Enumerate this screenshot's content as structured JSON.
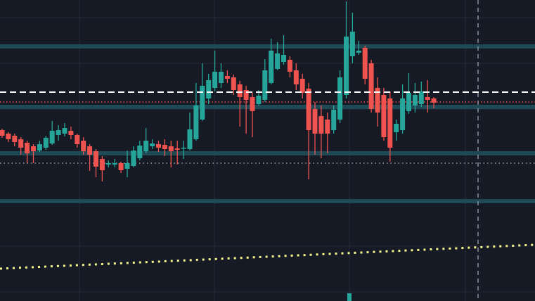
{
  "chart_data": {
    "type": "candlestick",
    "ylim": [
      0,
      428
    ],
    "yticks": [
      403,
      338,
      273,
      208,
      143,
      78,
      13
    ],
    "grid": true,
    "up_color": "#26a69a",
    "down_color": "#ef5350",
    "open": [
      243,
      238,
      235,
      230,
      225,
      220,
      214,
      218,
      224,
      236,
      238,
      242,
      236,
      228,
      220,
      213,
      202,
      194,
      194,
      196,
      188,
      192,
      203,
      213,
      220,
      223,
      222,
      220,
      217,
      217,
      216,
      230,
      258,
      288,
      303,
      310,
      320,
      318,
      308,
      300,
      290,
      280,
      286,
      310,
      330,
      340,
      343,
      328,
      316,
      302,
      273,
      263,
      258,
      243,
      258,
      293,
      348,
      353,
      360,
      338,
      303,
      293,
      288,
      240,
      243,
      270,
      278,
      280,
      290,
      288
    ],
    "high": [
      245,
      240,
      238,
      233,
      228,
      223,
      228,
      235,
      256,
      250,
      253,
      248,
      238,
      233,
      223,
      216,
      206,
      200,
      202,
      198,
      214,
      220,
      228,
      246,
      230,
      228,
      230,
      228,
      228,
      228,
      268,
      310,
      338,
      323,
      356,
      338,
      328,
      322,
      313,
      306,
      296,
      300,
      344,
      373,
      368,
      378,
      348,
      338,
      323,
      310,
      283,
      278,
      268,
      278,
      328,
      426,
      410,
      370,
      363,
      343,
      318,
      303,
      298,
      258,
      308,
      324,
      310,
      312,
      314,
      290
    ],
    "low": [
      232,
      226,
      220,
      208,
      196,
      196,
      212,
      215,
      222,
      228,
      234,
      230,
      218,
      208,
      185,
      176,
      170,
      190,
      190,
      182,
      176,
      190,
      200,
      210,
      216,
      212,
      206,
      190,
      194,
      202,
      214,
      228,
      256,
      280,
      298,
      303,
      310,
      293,
      248,
      238,
      233,
      278,
      283,
      308,
      328,
      336,
      318,
      300,
      288,
      173,
      208,
      203,
      210,
      238,
      253,
      288,
      338,
      350,
      308,
      268,
      248,
      228,
      198,
      228,
      238,
      266,
      268,
      276,
      268,
      274
    ],
    "close": [
      235,
      230,
      226,
      218,
      210,
      213,
      223,
      232,
      242,
      243,
      246,
      236,
      223,
      213,
      208,
      191,
      186,
      196,
      196,
      186,
      196,
      214,
      221,
      228,
      224,
      218,
      216,
      213,
      215,
      218,
      244,
      278,
      306,
      314,
      326,
      326,
      316,
      300,
      290,
      286,
      270,
      292,
      328,
      356,
      352,
      350,
      326,
      308,
      296,
      243,
      238,
      238,
      238,
      272,
      318,
      376,
      383,
      356,
      316,
      273,
      268,
      233,
      218,
      252,
      288,
      296,
      293,
      298,
      286,
      282
    ],
    "zone_levels": [
      362,
      276,
      210,
      142
    ],
    "zone_color": "#1f4a55",
    "last_price": 297,
    "last_price_color": "#ffffff",
    "previous_close": 283,
    "previous_close_color": "#ef5350",
    "support_level": 196,
    "support_color": "#9aa0ab",
    "trendline": [
      46,
      80
    ],
    "trendline_color": "#f5f58a"
  }
}
